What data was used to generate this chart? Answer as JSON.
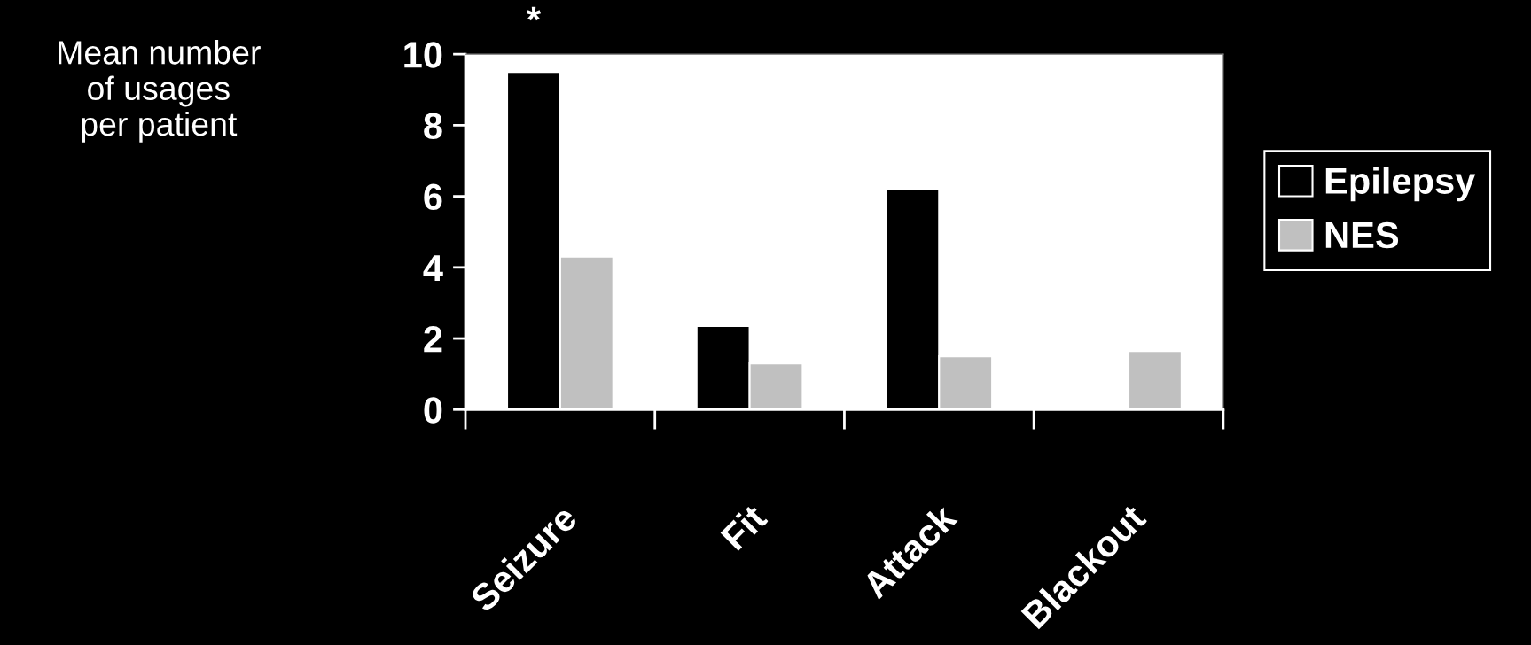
{
  "chart_data": {
    "type": "bar",
    "ylabel": "Mean number\nof usages\nper patient",
    "categories": [
      "Seizure",
      "Fit",
      "Attack",
      "Blackout"
    ],
    "series": [
      {
        "name": "Epilepsy",
        "color": "#000000",
        "values": [
          9.5,
          2.35,
          6.2,
          null
        ]
      },
      {
        "name": "NES",
        "color": "#c0c0c0",
        "values": [
          4.3,
          1.3,
          1.5,
          1.65
        ]
      }
    ],
    "ylim": [
      0,
      10
    ],
    "yticks": [
      0,
      2,
      4,
      6,
      8,
      10
    ],
    "grid": false,
    "legend": "right",
    "annotations": [
      "*"
    ]
  }
}
